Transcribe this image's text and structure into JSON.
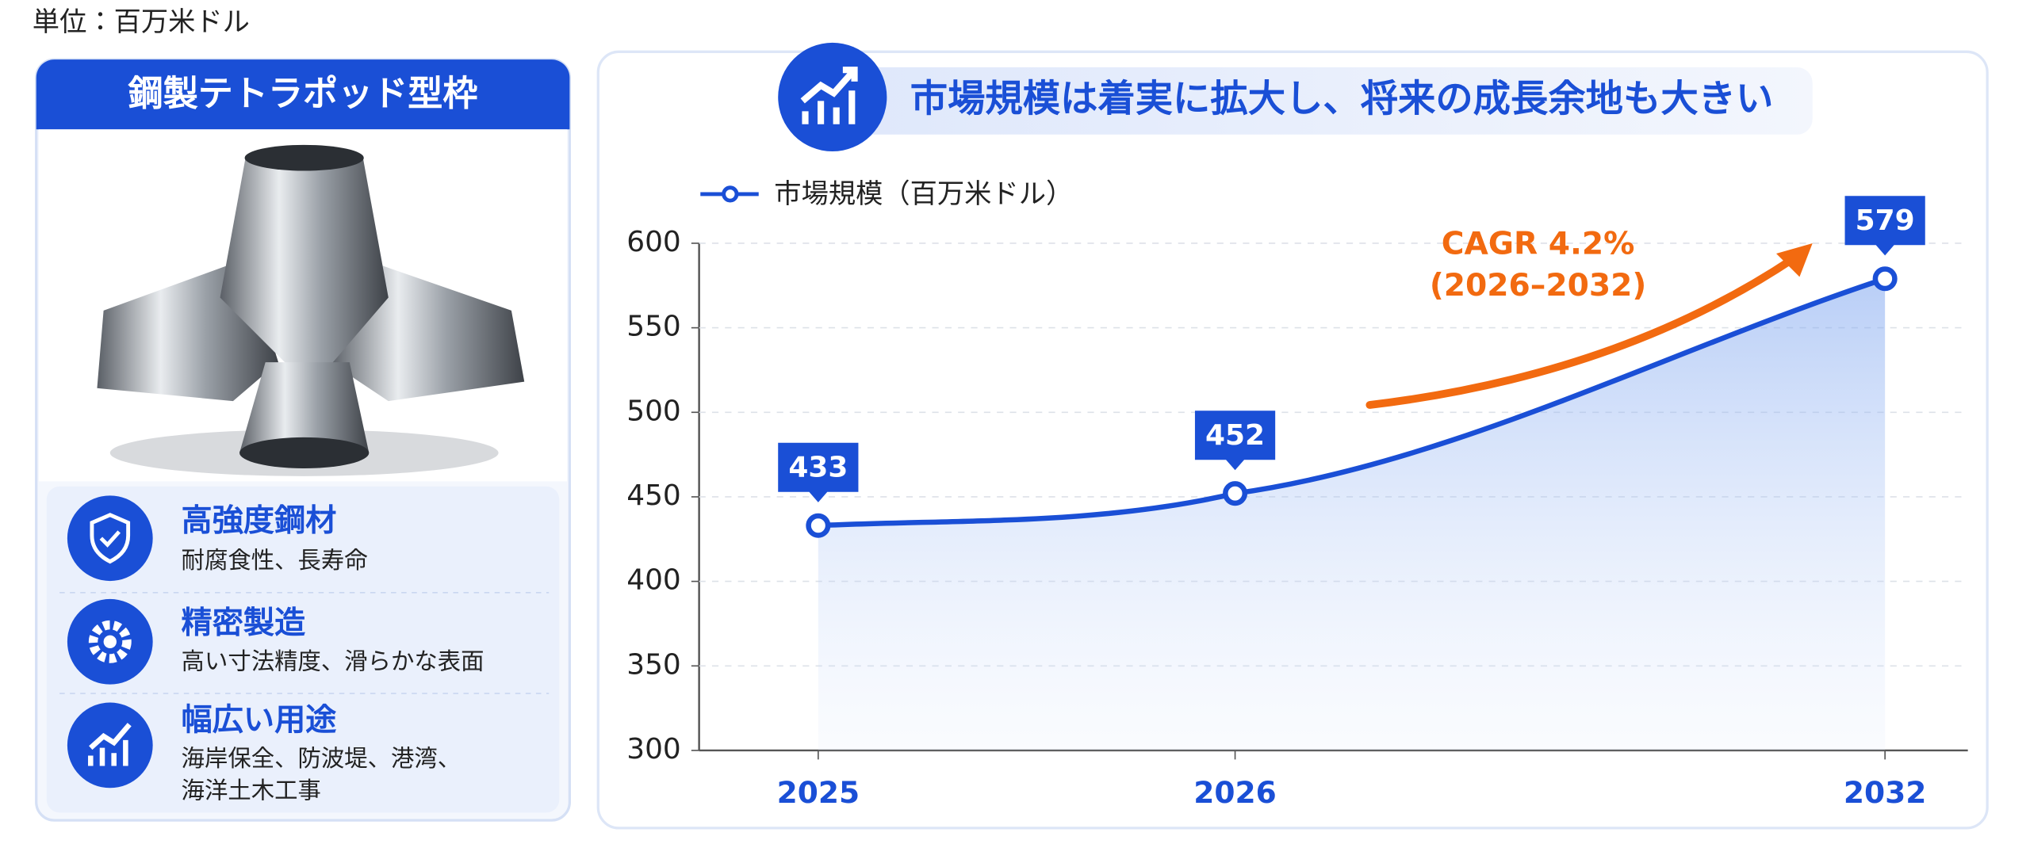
{
  "unit_label": "単位：百万米ドル",
  "left_panel": {
    "title": "鋼製テトラポッド型枠",
    "features": [
      {
        "title": "高強度鋼材",
        "description": [
          "耐腐食性、長寿命"
        ]
      },
      {
        "title": "精密製造",
        "description": [
          "高い寸法精度、滑らかな表面"
        ]
      },
      {
        "title": "幅広い用途",
        "description": [
          "海岸保全、防波堤、港湾、",
          "海洋土木工事"
        ]
      }
    ]
  },
  "chart_data": {
    "type": "line",
    "title": "市場規模は着実に拡大し、将来の成長余地も大きい",
    "categories": [
      "2025",
      "2026",
      "2032"
    ],
    "series": [
      {
        "name": "市場規模（百万米ドル）",
        "color": "#1a4fd6",
        "values": [
          433,
          452,
          579
        ]
      }
    ],
    "ylim": [
      300,
      600
    ],
    "yticks": [
      300,
      350,
      400,
      450,
      500,
      550,
      600
    ],
    "grid": true,
    "annotation": {
      "lines": [
        "CAGR 4.2%",
        "(2026–2032)"
      ],
      "color": "#f26a10"
    }
  }
}
